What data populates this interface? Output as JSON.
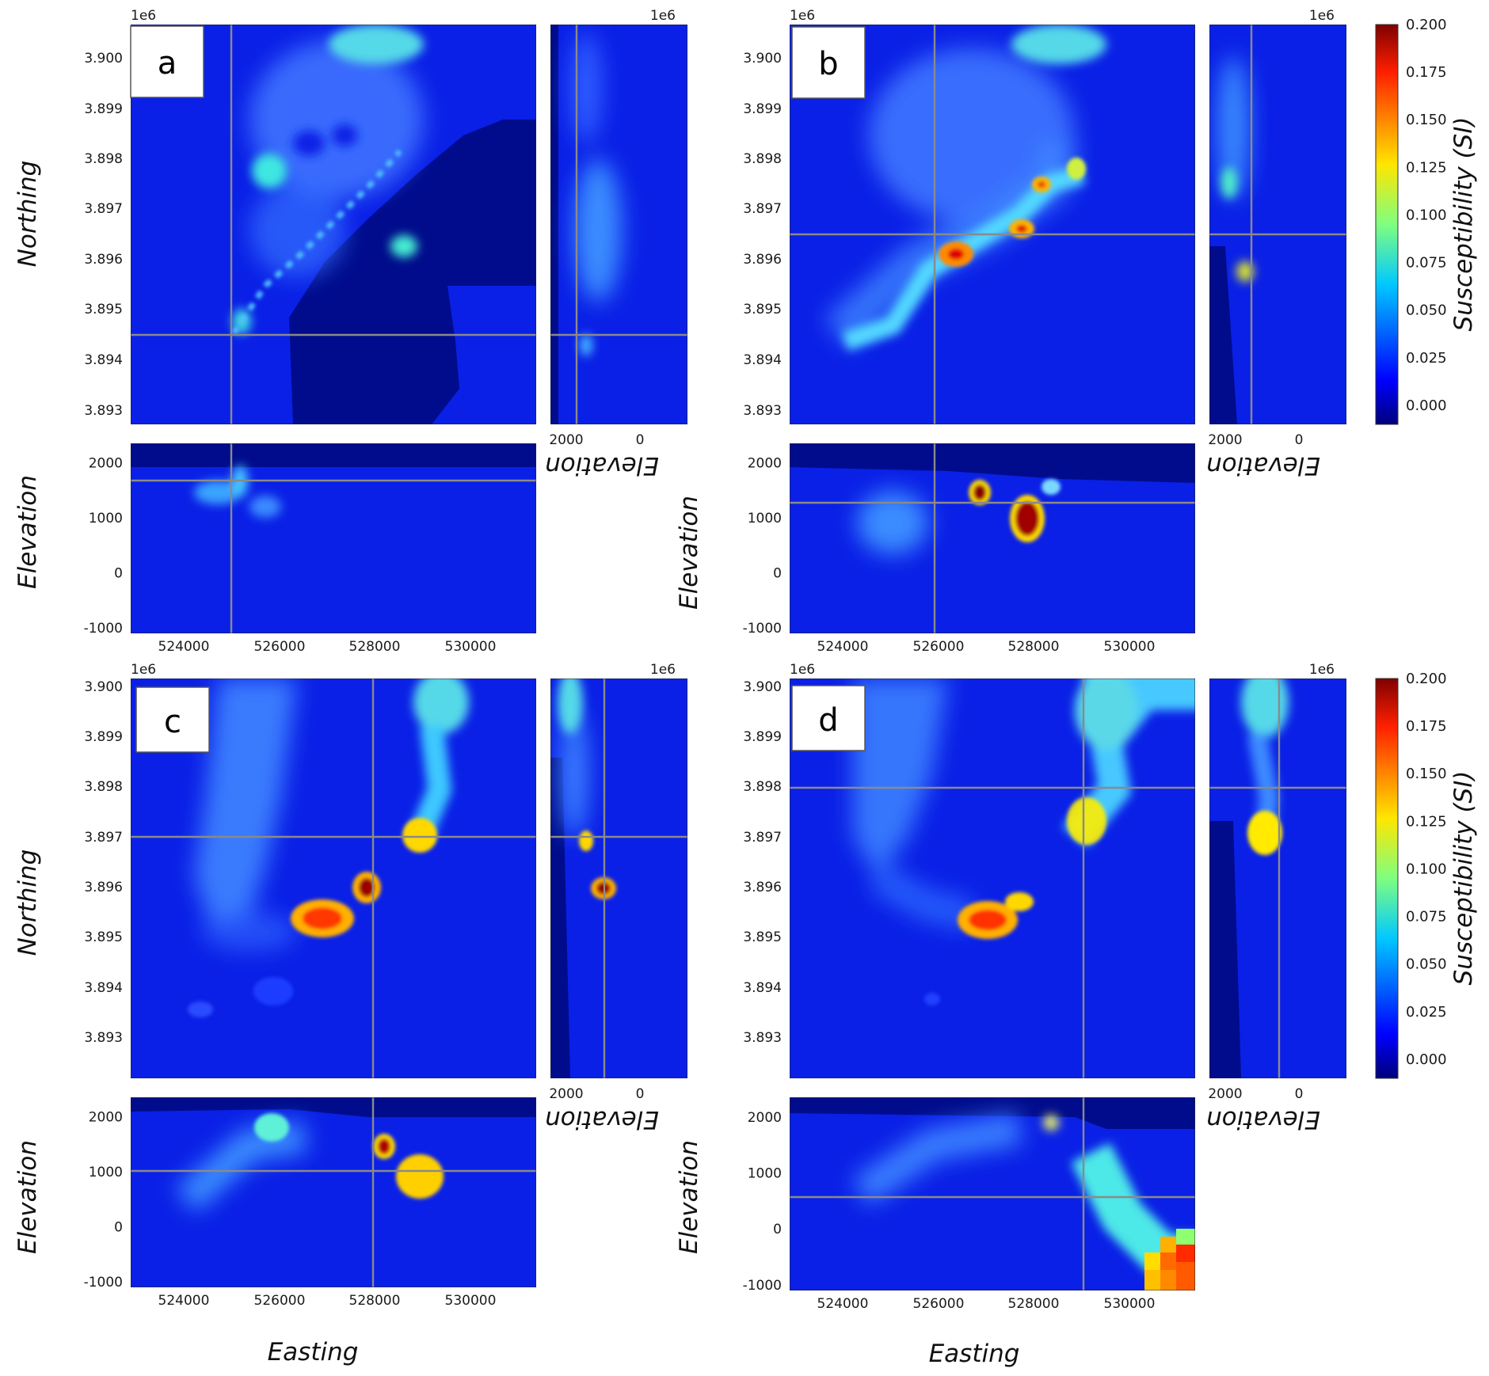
{
  "figure": {
    "panel_letters": [
      "a",
      "b",
      "c",
      "d"
    ],
    "multiplier": "1e6",
    "x_label": "Easting",
    "y_label": "Northing",
    "elevation_label": "Elevation",
    "colorbar_label": "Susceptibility (SI)",
    "northing_ticks": [
      "3.900",
      "3.899",
      "3.898",
      "3.897",
      "3.896",
      "3.895",
      "3.894",
      "3.893"
    ],
    "easting_ticks": [
      "524000",
      "526000",
      "528000",
      "530000"
    ],
    "elevation_ticks": [
      "2000",
      "1000",
      "0",
      "-1000"
    ],
    "side_elevation_ticks": [
      "2000",
      "0"
    ],
    "colorbar_ticks": [
      "0.200",
      "0.175",
      "0.150",
      "0.125",
      "0.100",
      "0.075",
      "0.050",
      "0.025",
      "0.000"
    ]
  },
  "chart_data": [
    {
      "type": "heatmap",
      "panel": "a",
      "views": [
        "plan (Easting vs Northing)",
        "section (Easting vs Elevation)",
        "section (Elevation vs Northing)"
      ],
      "crosshair": {
        "easting": 525000,
        "northing": 3894000,
        "elevation": 1700
      },
      "xlim": [
        523000,
        531500
      ],
      "ylim": [
        3892300,
        3900200
      ],
      "elevation_lim": [
        -1100,
        2350
      ],
      "colorscale": "jet",
      "color_range": [
        -0.01,
        0.2
      ],
      "anomalies": [
        {
          "easting": 525300,
          "northing": 3894300,
          "elevation": 1600,
          "susceptibility": 0.06
        },
        {
          "easting": 529200,
          "northing": 3895800,
          "elevation": 1500,
          "susceptibility": 0.07
        },
        {
          "easting": 525900,
          "northing": 3897100,
          "elevation": 1200,
          "susceptibility": 0.07
        },
        {
          "easting": 528200,
          "northing": 3899800,
          "elevation": 1200,
          "susceptibility": 0.08
        }
      ]
    },
    {
      "type": "heatmap",
      "panel": "b",
      "views": [
        "plan (Easting vs Northing)",
        "section (Easting vs Elevation)",
        "section (Elevation vs Northing)"
      ],
      "crosshair": {
        "easting": 526000,
        "northing": 3896000,
        "elevation": 1300
      },
      "xlim": [
        523000,
        531500
      ],
      "ylim": [
        3892300,
        3900200
      ],
      "elevation_lim": [
        -1100,
        2350
      ],
      "colorscale": "jet",
      "color_range": [
        -0.01,
        0.2
      ],
      "anomalies": [
        {
          "easting": 526500,
          "northing": 3895600,
          "elevation": 1500,
          "susceptibility": 0.2
        },
        {
          "easting": 527800,
          "northing": 3896100,
          "elevation": 1000,
          "susceptibility": 0.2
        },
        {
          "easting": 528700,
          "northing": 3897000,
          "elevation": 1300,
          "susceptibility": 0.15
        },
        {
          "easting": 529300,
          "northing": 3897300,
          "elevation": 1500,
          "susceptibility": 0.1
        },
        {
          "easting": 528200,
          "northing": 3899800,
          "elevation": 1200,
          "susceptibility": 0.08
        }
      ]
    },
    {
      "type": "heatmap",
      "panel": "c",
      "views": [
        "plan (Easting vs Northing)",
        "section (Easting vs Elevation)",
        "section (Elevation vs Northing)"
      ],
      "crosshair": {
        "easting": 528000,
        "northing": 3897000,
        "elevation": 1000
      },
      "xlim": [
        523000,
        531500
      ],
      "ylim": [
        3892300,
        3900200
      ],
      "elevation_lim": [
        -1100,
        2350
      ],
      "colorscale": "jet",
      "color_range": [
        -0.01,
        0.2
      ],
      "anomalies": [
        {
          "easting": 526800,
          "northing": 3895400,
          "elevation": 1900,
          "susceptibility": 0.15
        },
        {
          "easting": 527900,
          "northing": 3895900,
          "elevation": 1500,
          "susceptibility": 0.2
        },
        {
          "easting": 528900,
          "northing": 3897000,
          "elevation": 900,
          "susceptibility": 0.12
        },
        {
          "easting": 528500,
          "northing": 3899800,
          "elevation": 1700,
          "susceptibility": 0.07
        }
      ]
    },
    {
      "type": "heatmap",
      "panel": "d",
      "views": [
        "plan (Easting vs Northing)",
        "section (Easting vs Elevation)",
        "section (Elevation vs Northing)"
      ],
      "crosshair": {
        "easting": 529000,
        "northing": 3898000,
        "elevation": 600
      },
      "xlim": [
        523000,
        531500
      ],
      "ylim": [
        3892300,
        3900200
      ],
      "elevation_lim": [
        -1100,
        2350
      ],
      "colorscale": "jet",
      "color_range": [
        -0.01,
        0.2
      ],
      "anomalies": [
        {
          "easting": 527000,
          "northing": 3895400,
          "elevation": 1900,
          "susceptibility": 0.16
        },
        {
          "easting": 529400,
          "northing": 3897200,
          "elevation": 1000,
          "susceptibility": 0.12
        },
        {
          "easting": 529700,
          "northing": 3899700,
          "elevation": 1500,
          "susceptibility": 0.07
        },
        {
          "easting": 531000,
          "northing": 3893000,
          "elevation": -600,
          "susceptibility": 0.16
        }
      ]
    }
  ]
}
